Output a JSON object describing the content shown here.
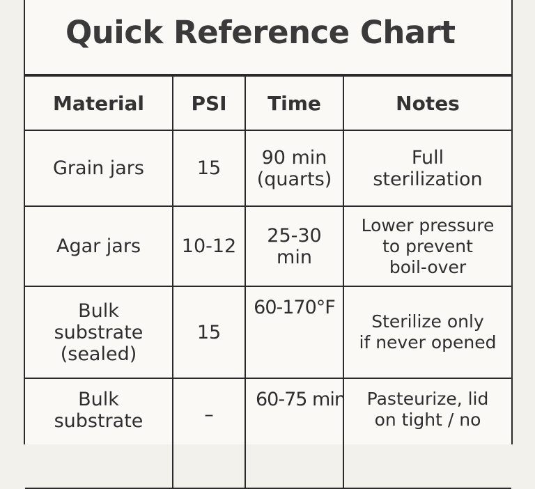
{
  "title": "Quick Reference Chart",
  "columns": [
    "Material",
    "PSI",
    "Time",
    "Notes"
  ],
  "rows": [
    {
      "material": [
        "Grain jars"
      ],
      "psi": "15",
      "time": [
        "90 min",
        "(quarts)"
      ],
      "notes": [
        "Full",
        "sterilization"
      ]
    },
    {
      "material": [
        "Agar jars"
      ],
      "psi": "10-12",
      "time": [
        "25-30",
        "min"
      ],
      "notes": [
        "Lower pressure",
        "to prevent",
        "boil-over"
      ]
    },
    {
      "material": [
        "Bulk",
        "substrate",
        "(sealed)"
      ],
      "psi": "15",
      "time": [
        "60-170°F"
      ],
      "notes": [
        "Sterilize only",
        "if never opened"
      ]
    },
    {
      "material": [
        "Bulk",
        "substrate"
      ],
      "psi": "–",
      "time": [
        "60-75 min"
      ],
      "notes": [
        "Pasteurize, lid",
        "on tight / no"
      ]
    }
  ]
}
